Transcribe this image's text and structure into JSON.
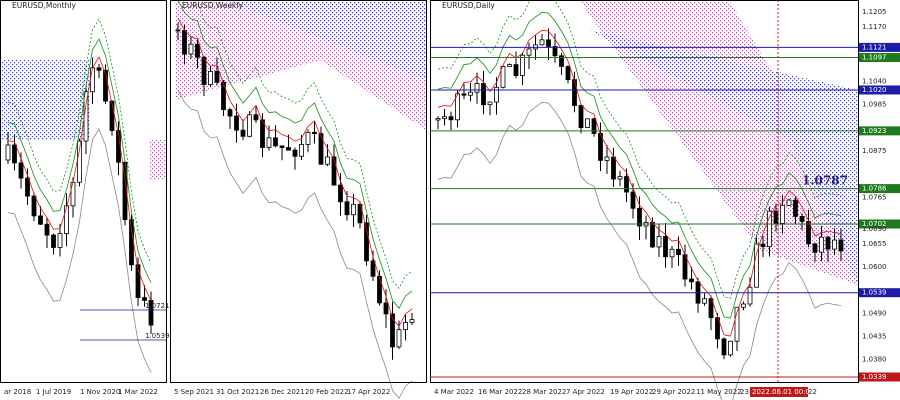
{
  "panels": [
    {
      "title": "EURUSD,Monthly",
      "x_labels": [
        "ar 2018",
        "1 Jul 2019",
        "1 Nov 2020",
        "1 Mar 2022"
      ],
      "level_labels": [
        "1.0721",
        "1.0539"
      ]
    },
    {
      "title": "EURUSD,Weekly",
      "x_labels": [
        "5 Sep 2021",
        "31 Oct 2021",
        "26 Dec 2021",
        "20 Feb 2022",
        "17 Apr 2022"
      ]
    },
    {
      "title": "EURUSD,Daily",
      "x_labels": [
        "4 Mar 2022",
        "16 Mar 2022",
        "28 Mar 2022",
        "7 Apr 2022",
        "19 Apr 2022",
        "29 Apr 2022",
        "11 May 2022",
        "23 May",
        "2022.06.01 00:00",
        "22"
      ],
      "annotation": "1.0787",
      "price_labels": [
        {
          "text": "1.1205"
        },
        {
          "text": "1.1170"
        },
        {
          "text": "1.1121",
          "box": "#1c1ca8"
        },
        {
          "text": "1.1097",
          "box": "#1f7a1f"
        },
        {
          "text": "1.1040"
        },
        {
          "text": "1.1020",
          "box": "#1c1ca8"
        },
        {
          "text": "1.0985"
        },
        {
          "text": "1.0923",
          "box": "#1f7a1f"
        },
        {
          "text": "1.0875"
        },
        {
          "text": "1.0786",
          "box": "#1f7a1f"
        },
        {
          "text": "1.0765"
        },
        {
          "text": "1.0702",
          "box": "#1f7a1f"
        },
        {
          "text": "1.0690"
        },
        {
          "text": "1.0655"
        },
        {
          "text": "1.0600"
        },
        {
          "text": "1.0539",
          "box": "#1c1ca8"
        },
        {
          "text": "1.0490"
        },
        {
          "text": "1.0435"
        },
        {
          "text": "1.0380"
        },
        {
          "text": "1.0339",
          "box": "#c01818"
        }
      ]
    }
  ]
}
